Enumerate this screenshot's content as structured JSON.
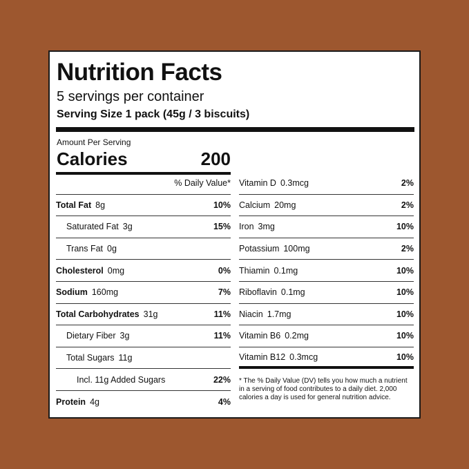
{
  "title": "Nutrition Facts",
  "servings": "5 servings per container",
  "serving_size": "Serving Size 1 pack (45g / 3 biscuits)",
  "amount_per_serving": "Amount Per Serving",
  "calories_label": "Calories",
  "calories_value": "200",
  "dv_header": "% Daily Value*",
  "left_rows": [
    {
      "name": "Total Fat",
      "amount": "8g",
      "dv": "10%"
    },
    {
      "name": "Saturated Fat",
      "amount": "3g",
      "dv": "15%"
    },
    {
      "name": "Trans Fat",
      "amount": "0g",
      "dv": ""
    },
    {
      "name": "Cholesterol",
      "amount": "0mg",
      "dv": "0%"
    },
    {
      "name": "Sodium",
      "amount": "160mg",
      "dv": "7%"
    },
    {
      "name": "Total Carbohydrates",
      "amount": "31g",
      "dv": "11%"
    },
    {
      "name": "Dietary Fiber",
      "amount": "3g",
      "dv": "11%"
    },
    {
      "name": "Total Sugars",
      "amount": "11g",
      "dv": ""
    },
    {
      "name": "Incl. 11g Added Sugars",
      "amount": "",
      "dv": "22%"
    },
    {
      "name": "Protein",
      "amount": "4g",
      "dv": "4%"
    }
  ],
  "right_rows": [
    {
      "name": "Vitamin D",
      "amount": "0.3mcg",
      "dv": "2%"
    },
    {
      "name": "Calcium",
      "amount": "20mg",
      "dv": "2%"
    },
    {
      "name": "Iron",
      "amount": "3mg",
      "dv": "10%"
    },
    {
      "name": "Potassium",
      "amount": "100mg",
      "dv": "2%"
    },
    {
      "name": "Thiamin",
      "amount": "0.1mg",
      "dv": "10%"
    },
    {
      "name": "Riboflavin",
      "amount": "0.1mg",
      "dv": "10%"
    },
    {
      "name": "Niacin",
      "amount": "1.7mg",
      "dv": "10%"
    },
    {
      "name": "Vitamin B6",
      "amount": "0.2mg",
      "dv": "10%"
    },
    {
      "name": "Vitamin B12",
      "amount": "0.3mcg",
      "dv": "10%"
    }
  ],
  "footnote": "* The % Daily Value (DV) tells you how much a nutrient in a serving of food contributes to a daily diet. 2,000 calories a day is used for general nutrition advice.",
  "colors": {
    "background": "#9d572f",
    "panel": "#ffffff",
    "ink": "#111111"
  }
}
